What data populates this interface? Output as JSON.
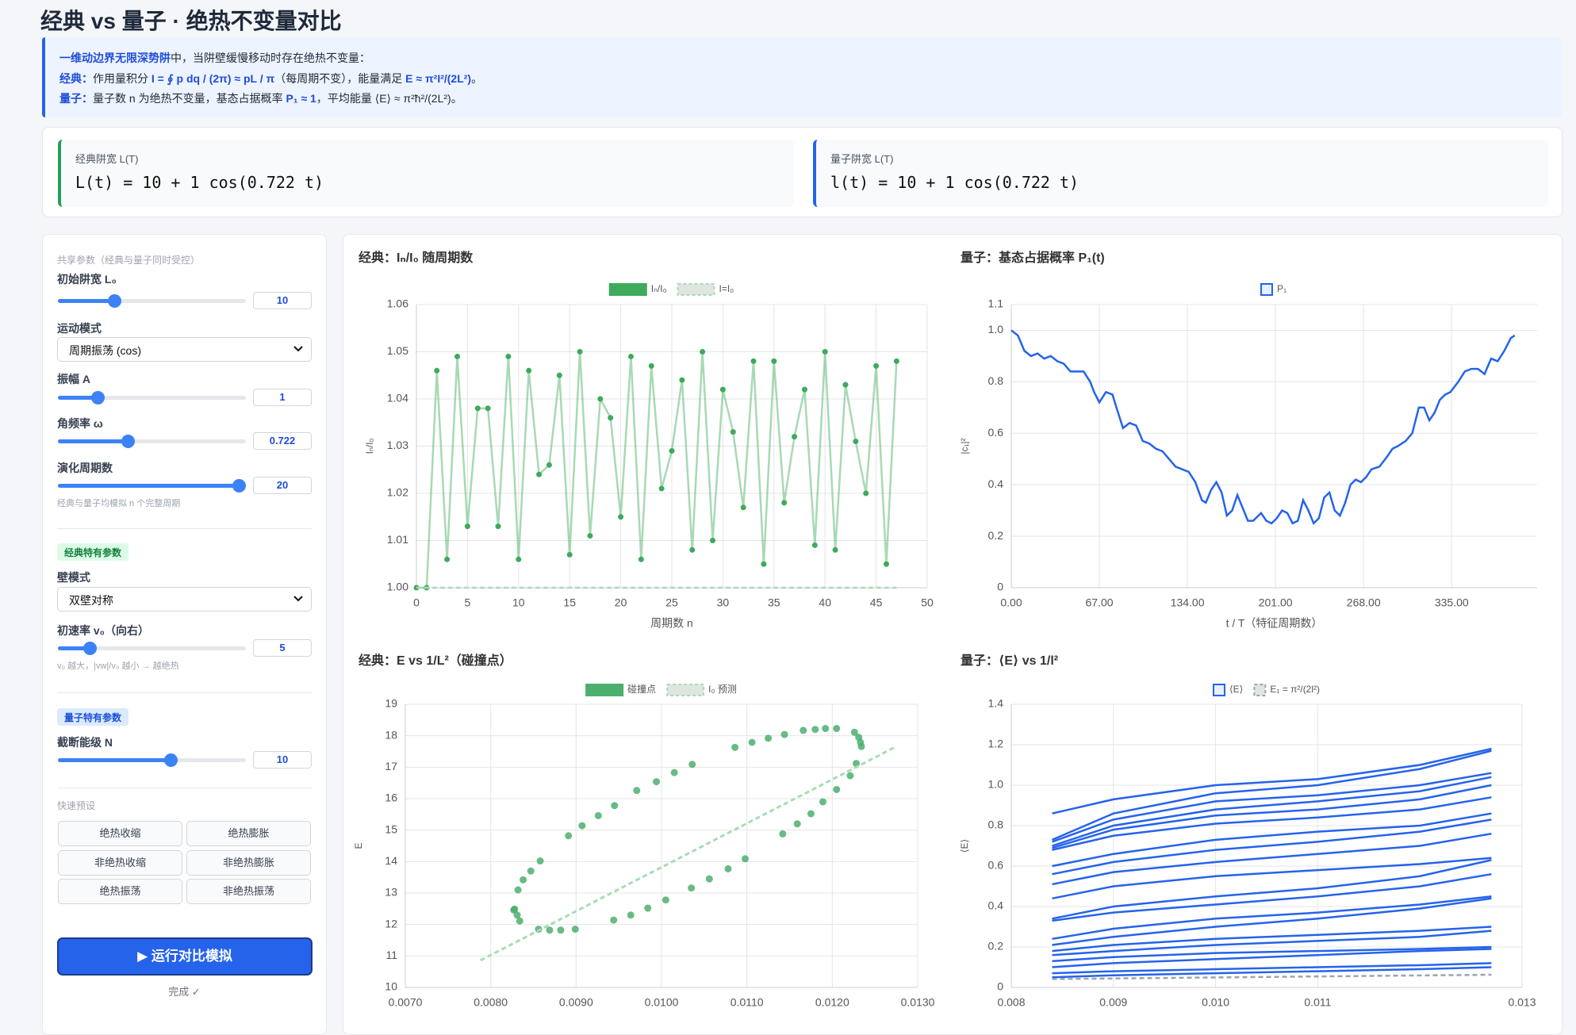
{
  "header": {
    "title": "经典 vs 量子 · 绝热不变量对比"
  },
  "info": {
    "line1": [
      "一维动边界无限深势阱",
      "中，当阱壁缓慢移动时存在绝热不变量："
    ],
    "line2": [
      "经典：",
      "作用量积分 ",
      "I = ∮ p dq / (2π) ≈ pL / π",
      "（每周期不变），能量满足 ",
      "E ≈ π²I²/(2L²)",
      "。"
    ],
    "line3": [
      "量子：",
      "量子数 n 为绝热不变量，基态占据概率 ",
      "P₁ ≈ 1",
      "，平均能量 ⟨E⟩ ≈ π²ħ²/(2L²)。"
    ]
  },
  "formulas": [
    {
      "label": "经典阱宽 L(T)",
      "expr": "L(t) = 10 + 1 cos(0.722 t)"
    },
    {
      "label": "量子阱宽 L(T)",
      "expr": "l(t) = 10 + 1 cos(0.722 t)"
    }
  ],
  "controls": {
    "shared_heading": "共享参数（经典与量子同时受控）",
    "L0": {
      "label": "初始阱宽 L₀",
      "value": 10
    },
    "mode": {
      "label": "运动模式",
      "value": "周期振荡 (cos)"
    },
    "amplitude": {
      "label": "振幅 A",
      "value": 1
    },
    "omega": {
      "label": "角频率 ω",
      "value": 0.722
    },
    "cycles": {
      "label": "演化周期数",
      "value": 20,
      "note": "经典与量子均模拟 n 个完整周期"
    },
    "classical_badge": "经典特有参数",
    "wall": {
      "label": "壁模式",
      "value": "双壁对称"
    },
    "v0": {
      "label": "初速率 v₀（向右）",
      "value": 5,
      "note": "v₀ 越大，|vw|/v₀ 越小 → 越绝热"
    },
    "quantum_badge": "量子特有参数",
    "N": {
      "label": "截断能级 N",
      "value": 10
    },
    "presets_heading": "快速预设",
    "presets": [
      "绝热收缩",
      "绝热膨胀",
      "非绝热收缩",
      "非绝热膨胀",
      "绝热振荡",
      "非绝热振荡"
    ],
    "run": "▶ 运行对比模拟",
    "status": "完成 ✓"
  },
  "chart_data": [
    {
      "type": "line",
      "title": "经典：Iₙ/I₀ 随周期数",
      "x_label": "周期数 n",
      "y_label": "Iₙ/I₀",
      "x": [
        0,
        1,
        2,
        3,
        4,
        5,
        6,
        7,
        8,
        9,
        10,
        11,
        12,
        13,
        14,
        15,
        16,
        17,
        18,
        19,
        20,
        21,
        22,
        23,
        24,
        25,
        26,
        27,
        28,
        29,
        30,
        31,
        32,
        33,
        34,
        35,
        36,
        37,
        38,
        39,
        40,
        41,
        42,
        43,
        44,
        45,
        46,
        47
      ],
      "series": [
        {
          "name": "Iₙ/I₀",
          "color": "#3daa5c",
          "markers": true,
          "values": [
            1.0,
            1.0,
            1.046,
            1.006,
            1.049,
            1.013,
            1.038,
            1.038,
            1.013,
            1.049,
            1.006,
            1.046,
            1.024,
            1.026,
            1.045,
            1.007,
            1.05,
            1.011,
            1.04,
            1.036,
            1.015,
            1.049,
            1.006,
            1.047,
            1.021,
            1.029,
            1.044,
            1.008,
            1.05,
            1.01,
            1.042,
            1.033,
            1.017,
            1.048,
            1.005,
            1.048,
            1.018,
            1.032,
            1.042,
            1.009,
            1.05,
            1.008,
            1.043,
            1.031,
            1.02,
            1.047,
            1.005,
            1.048
          ]
        },
        {
          "name": "I=I₀",
          "color": "#a8dcb5",
          "dash": true,
          "values": [
            1,
            1,
            1,
            1,
            1,
            1,
            1,
            1,
            1,
            1,
            1,
            1,
            1,
            1,
            1,
            1,
            1,
            1,
            1,
            1,
            1,
            1,
            1,
            1,
            1,
            1,
            1,
            1,
            1,
            1,
            1,
            1,
            1,
            1,
            1,
            1,
            1,
            1,
            1,
            1,
            1,
            1,
            1,
            1,
            1,
            1,
            1,
            1
          ]
        }
      ],
      "xlim": [
        0,
        50
      ],
      "xticks": [
        0,
        5,
        10,
        15,
        20,
        25,
        30,
        35,
        40,
        45,
        50
      ],
      "ylim": [
        1,
        1.06
      ],
      "yticks": [
        {
          "value": 1,
          "label": "1.00"
        },
        1.01,
        1.02,
        1.03,
        1.04,
        1.05,
        1.06
      ],
      "grid": true
    },
    {
      "type": "line",
      "title": "量子：基态占据概率 P₁(t)",
      "x_label": "t / T（特征周期数）",
      "y_label": "|c₁|²",
      "x": [
        0,
        5,
        10,
        15,
        20,
        25,
        30,
        35,
        40,
        45,
        50,
        55,
        60,
        63,
        67,
        72,
        77,
        80,
        85,
        90,
        95,
        100,
        105,
        110,
        115,
        120,
        125,
        130,
        135,
        140,
        145,
        148,
        152,
        156,
        160,
        164,
        168,
        172,
        176,
        180,
        184,
        190,
        194,
        198,
        202,
        206,
        210,
        214,
        218,
        222,
        226,
        230,
        234,
        238,
        242,
        246,
        250,
        254,
        258,
        262,
        266,
        270,
        274,
        280,
        286,
        290,
        294,
        300,
        305,
        310,
        314,
        318,
        322,
        326,
        330,
        334,
        340,
        345,
        350,
        355,
        360,
        365,
        370,
        375,
        380,
        383
      ],
      "series": [
        {
          "name": "P₁",
          "color": "#2563eb",
          "values": [
            1.0,
            0.98,
            0.92,
            0.9,
            0.91,
            0.89,
            0.9,
            0.88,
            0.87,
            0.84,
            0.84,
            0.84,
            0.8,
            0.76,
            0.72,
            0.76,
            0.75,
            0.7,
            0.62,
            0.64,
            0.63,
            0.57,
            0.56,
            0.54,
            0.53,
            0.5,
            0.47,
            0.46,
            0.45,
            0.41,
            0.34,
            0.33,
            0.38,
            0.41,
            0.37,
            0.28,
            0.3,
            0.36,
            0.31,
            0.26,
            0.26,
            0.29,
            0.26,
            0.25,
            0.27,
            0.3,
            0.29,
            0.25,
            0.26,
            0.34,
            0.3,
            0.25,
            0.27,
            0.35,
            0.37,
            0.3,
            0.28,
            0.33,
            0.4,
            0.42,
            0.41,
            0.43,
            0.46,
            0.47,
            0.51,
            0.54,
            0.55,
            0.57,
            0.6,
            0.7,
            0.7,
            0.65,
            0.68,
            0.73,
            0.75,
            0.76,
            0.8,
            0.84,
            0.85,
            0.85,
            0.83,
            0.89,
            0.88,
            0.92,
            0.97,
            0.98
          ]
        }
      ],
      "xlim": [
        0,
        400
      ],
      "xticks": [
        {
          "value": 0,
          "label": "0.00"
        },
        {
          "value": 67,
          "label": "67.00"
        },
        {
          "value": 134,
          "label": "134.00"
        },
        {
          "value": 201,
          "label": "201.00"
        },
        {
          "value": 268,
          "label": "268.00"
        },
        {
          "value": 335,
          "label": "335.00"
        }
      ],
      "ylim": [
        0,
        1.1
      ],
      "yticks": [
        0,
        0.2,
        0.4,
        0.6,
        0.8,
        {
          "value": 1,
          "label": "1.0"
        },
        1.1
      ],
      "grid": true
    },
    {
      "type": "scatter",
      "title": "经典：E vs 1/L²（碰撞点）",
      "y_label": "E",
      "series": [
        {
          "name": "碰撞点",
          "color": "#4caf6e",
          "x": [
            0.00828,
            0.00831,
            0.00834,
            0.00832,
            0.00838,
            0.00847,
            0.00858,
            0.00891,
            0.00907,
            0.00926,
            0.00945,
            0.00971,
            0.00994,
            0.01015,
            0.01036,
            0.01086,
            0.01106,
            0.01125,
            0.01144,
            0.01166,
            0.0118,
            0.01192,
            0.01205,
            0.01226,
            0.01231,
            0.01233,
            0.01234,
            0.01228,
            0.01221,
            0.01205,
            0.01189,
            0.01175,
            0.01159,
            0.01142,
            0.01098,
            0.01078,
            0.01056,
            0.01035,
            0.01005,
            0.00984,
            0.00964,
            0.00944,
            0.00899,
            0.00882,
            0.00869,
            0.00856,
            0.00827
          ],
          "values": [
            12.49,
            12.3,
            12.11,
            13.1,
            13.42,
            13.7,
            14.02,
            14.82,
            15.14,
            15.46,
            15.78,
            16.26,
            16.54,
            16.83,
            17.09,
            17.63,
            17.79,
            17.92,
            18.04,
            18.17,
            18.2,
            18.23,
            18.23,
            18.11,
            17.95,
            17.79,
            17.66,
            17.12,
            16.73,
            16.29,
            15.9,
            15.52,
            15.2,
            14.88,
            14.09,
            13.77,
            13.45,
            13.16,
            12.78,
            12.52,
            12.3,
            12.14,
            11.85,
            11.82,
            11.82,
            11.85,
            12.46
          ]
        },
        {
          "name": "I₀ 预测",
          "color": "#a8dcb5",
          "dash": true,
          "x": [
            0.00788,
            0.01273
          ],
          "values": [
            10.86,
            17.63
          ]
        }
      ],
      "xlim": [
        0.007,
        0.013
      ],
      "xticks": [
        {
          "value": 0.007,
          "label": "0.0070"
        },
        {
          "value": 0.008,
          "label": "0.0080"
        },
        {
          "value": 0.009,
          "label": "0.0090"
        },
        {
          "value": 0.01,
          "label": "0.0100"
        },
        {
          "value": 0.011,
          "label": "0.0110"
        },
        {
          "value": 0.012,
          "label": "0.0120"
        },
        {
          "value": 0.013,
          "label": "0.0130"
        }
      ],
      "ylim": [
        10,
        19
      ],
      "yticks": [
        10,
        11,
        12,
        13,
        14,
        15,
        16,
        17,
        18,
        19
      ],
      "grid": true
    },
    {
      "type": "line",
      "title": "量子：⟨E⟩ vs 1/l²",
      "y_label": "⟨E⟩",
      "x": [
        0.0084,
        0.009,
        0.01,
        0.011,
        0.012,
        0.0127
      ],
      "series": [
        {
          "name": "⟨E⟩",
          "color": "#2563eb",
          "values": [
            0.86,
            0.93,
            1.0,
            1.03,
            1.1,
            1.18
          ]
        },
        {
          "color": "#2563eb",
          "values": [
            0.73,
            0.86,
            0.96,
            1.0,
            1.08,
            1.17
          ]
        },
        {
          "color": "#2563eb",
          "values": [
            0.72,
            0.83,
            0.92,
            0.95,
            1.0,
            1.06
          ]
        },
        {
          "color": "#2563eb",
          "values": [
            0.7,
            0.8,
            0.88,
            0.92,
            0.97,
            1.04
          ]
        },
        {
          "color": "#2563eb",
          "values": [
            0.69,
            0.78,
            0.85,
            0.88,
            0.93,
            1.0
          ]
        },
        {
          "color": "#2563eb",
          "values": [
            0.68,
            0.75,
            0.81,
            0.84,
            0.88,
            0.94
          ]
        },
        {
          "color": "#2563eb",
          "values": [
            0.6,
            0.66,
            0.73,
            0.77,
            0.8,
            0.86
          ]
        },
        {
          "color": "#2563eb",
          "values": [
            0.56,
            0.62,
            0.68,
            0.72,
            0.77,
            0.83
          ]
        },
        {
          "color": "#2563eb",
          "values": [
            0.51,
            0.57,
            0.62,
            0.66,
            0.7,
            0.76
          ]
        },
        {
          "color": "#2563eb",
          "values": [
            0.44,
            0.5,
            0.55,
            0.58,
            0.61,
            0.64
          ]
        },
        {
          "color": "#2563eb",
          "values": [
            0.34,
            0.4,
            0.45,
            0.49,
            0.55,
            0.63
          ]
        },
        {
          "color": "#2563eb",
          "values": [
            0.33,
            0.37,
            0.41,
            0.45,
            0.5,
            0.56
          ]
        },
        {
          "color": "#2563eb",
          "values": [
            0.24,
            0.29,
            0.34,
            0.37,
            0.41,
            0.45
          ]
        },
        {
          "color": "#2563eb",
          "values": [
            0.21,
            0.25,
            0.3,
            0.34,
            0.39,
            0.44
          ]
        },
        {
          "color": "#2563eb",
          "values": [
            0.18,
            0.21,
            0.24,
            0.26,
            0.28,
            0.3
          ]
        },
        {
          "color": "#2563eb",
          "values": [
            0.16,
            0.18,
            0.21,
            0.23,
            0.25,
            0.28
          ]
        },
        {
          "color": "#2563eb",
          "values": [
            0.13,
            0.15,
            0.17,
            0.18,
            0.19,
            0.2
          ]
        },
        {
          "color": "#2563eb",
          "values": [
            0.1,
            0.12,
            0.14,
            0.16,
            0.18,
            0.19
          ]
        },
        {
          "color": "#2563eb",
          "values": [
            0.07,
            0.08,
            0.09,
            0.1,
            0.11,
            0.12
          ]
        },
        {
          "color": "#2563eb",
          "values": [
            0.05,
            0.06,
            0.07,
            0.08,
            0.09,
            0.1
          ]
        },
        {
          "name": "E₁ = π²/(2l²)",
          "color": "#9ca3af",
          "dash": true,
          "values": [
            0.0415,
            0.0444,
            0.0493,
            0.0543,
            0.0592,
            0.0627
          ]
        }
      ],
      "xlim": [
        0.008,
        0.013
      ],
      "xticks": [
        0.008,
        0.009,
        {
          "value": 0.01,
          "label": "0.010"
        },
        0.011,
        0.013
      ],
      "ylim": [
        0,
        1.4
      ],
      "yticks": [
        0,
        0.2,
        0.4,
        0.6,
        0.8,
        {
          "value": 1,
          "label": "1.0"
        },
        1.2,
        1.4
      ],
      "grid": true
    }
  ]
}
